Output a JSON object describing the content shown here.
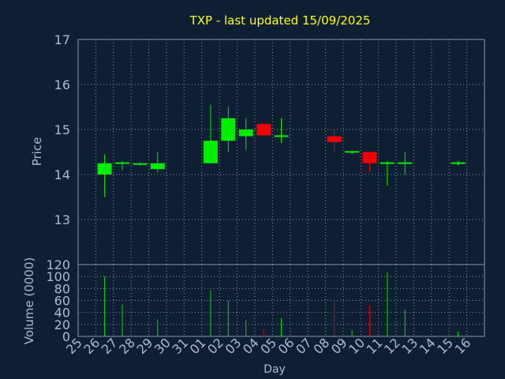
{
  "chart_data": [
    {
      "type": "candlestick",
      "title": "TXP - last updated 15/09/2025",
      "ylabel": "Price",
      "ylim": [
        12,
        17
      ],
      "yticks": [
        13,
        14,
        15,
        16,
        17
      ],
      "grid": true,
      "categories": [
        "25",
        "26",
        "27",
        "28",
        "29",
        "30",
        "31",
        "01",
        "02",
        "03",
        "04",
        "05",
        "06",
        "07",
        "08",
        "09",
        "10",
        "11",
        "12",
        "13",
        "14",
        "15",
        "16"
      ],
      "candles": [
        {
          "day": "26",
          "open": 14.0,
          "high": 14.45,
          "low": 13.5,
          "close": 14.25
        },
        {
          "day": "27",
          "open": 14.25,
          "high": 14.3,
          "low": 14.1,
          "close": 14.27
        },
        {
          "day": "28",
          "open": 14.25,
          "high": 14.27,
          "low": 14.2,
          "close": 14.25
        },
        {
          "day": "29",
          "open": 14.12,
          "high": 14.5,
          "low": 14.05,
          "close": 14.25
        },
        {
          "day": "01",
          "open": 14.25,
          "high": 15.55,
          "low": 14.25,
          "close": 14.75
        },
        {
          "day": "02",
          "open": 14.75,
          "high": 15.5,
          "low": 14.5,
          "close": 15.25
        },
        {
          "day": "03",
          "open": 14.85,
          "high": 15.25,
          "low": 14.55,
          "close": 15.0
        },
        {
          "day": "04",
          "open": 15.12,
          "high": 15.15,
          "low": 14.85,
          "close": 14.87
        },
        {
          "day": "05",
          "open": 14.85,
          "high": 15.25,
          "low": 14.7,
          "close": 14.87
        },
        {
          "day": "08",
          "open": 14.85,
          "high": 15.0,
          "low": 14.5,
          "close": 14.72
        },
        {
          "day": "09",
          "open": 14.5,
          "high": 14.5,
          "low": 14.45,
          "close": 14.52
        },
        {
          "day": "10",
          "open": 14.5,
          "high": 14.5,
          "low": 14.05,
          "close": 14.25
        },
        {
          "day": "11",
          "open": 14.25,
          "high": 14.3,
          "low": 13.75,
          "close": 14.27
        },
        {
          "day": "12",
          "open": 14.25,
          "high": 14.5,
          "low": 14.0,
          "close": 14.27
        },
        {
          "day": "15",
          "open": 14.25,
          "high": 14.3,
          "low": 14.2,
          "close": 14.27
        }
      ]
    },
    {
      "type": "bar",
      "xlabel": "Day",
      "ylabel": "Volume (0000)",
      "ylim": [
        0,
        120
      ],
      "yticks": [
        0,
        20,
        40,
        60,
        80,
        100,
        120
      ],
      "grid": true,
      "categories": [
        "25",
        "26",
        "27",
        "28",
        "29",
        "30",
        "31",
        "01",
        "02",
        "03",
        "04",
        "05",
        "06",
        "07",
        "08",
        "09",
        "10",
        "11",
        "12",
        "13",
        "14",
        "15",
        "16"
      ],
      "bars": [
        {
          "day": "26",
          "value": 100,
          "color": "#00dd00"
        },
        {
          "day": "27",
          "value": 53,
          "color": "#00dd00"
        },
        {
          "day": "29",
          "value": 28,
          "color": "#00dd00"
        },
        {
          "day": "01",
          "value": 77,
          "color": "#00dd00"
        },
        {
          "day": "02",
          "value": 60,
          "color": "#00dd00"
        },
        {
          "day": "03",
          "value": 27,
          "color": "#00dd00"
        },
        {
          "day": "04",
          "value": 12,
          "color": "#dd0000"
        },
        {
          "day": "05",
          "value": 30,
          "color": "#00dd00"
        },
        {
          "day": "08",
          "value": 58,
          "color": "#dd0000"
        },
        {
          "day": "09",
          "value": 10,
          "color": "#00dd00"
        },
        {
          "day": "10",
          "value": 52,
          "color": "#dd0000"
        },
        {
          "day": "11",
          "value": 107,
          "color": "#00dd00"
        },
        {
          "day": "12",
          "value": 45,
          "color": "#00dd00"
        },
        {
          "day": "15",
          "value": 8,
          "color": "#00dd00"
        }
      ]
    }
  ],
  "colors": {
    "background": "#0f1f33",
    "title": "#ffff00",
    "text": "#a9bbd6",
    "grid": "#8899aa",
    "up": "#00ee00",
    "down": "#ee0000"
  }
}
